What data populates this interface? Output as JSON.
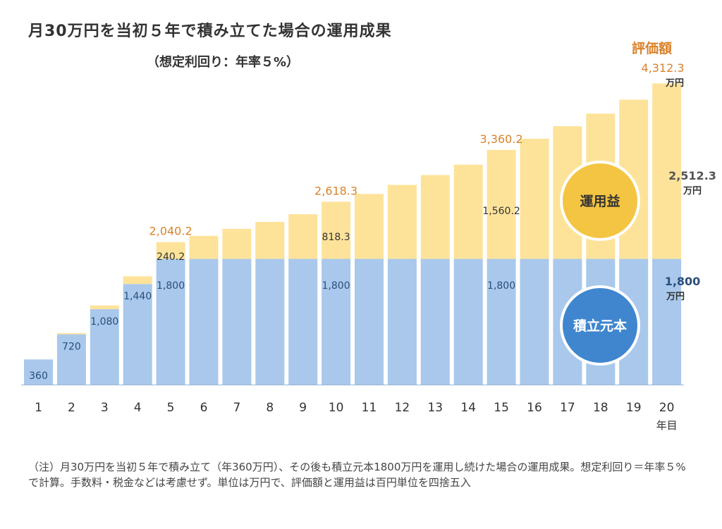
{
  "title": "月30万円を当初５年で積み立てた場合の運用成果",
  "subtitle": "（想定利回り：年率５%）",
  "note": "（注）月30万円を当初５年で積み立て（年360万円）、その後も積立元本1800万円を運用し続けた場合の運用成果。想定利回り＝年率５%で計算。手数料・税金などは考慮せず。単位は万円で、評価額と運用益は百円単位を四捨五入",
  "colors": {
    "principal": "#a9c8ec",
    "gain": "#fde39a",
    "eval_text": "#d9822b",
    "principal_circle": "#3f86cf",
    "gain_circle": "#f4c542",
    "value_text": "#2a4f7a"
  },
  "chart_data": {
    "type": "bar",
    "stacked": true,
    "categories": [
      "1",
      "2",
      "3",
      "4",
      "5",
      "6",
      "7",
      "8",
      "9",
      "10",
      "11",
      "12",
      "13",
      "14",
      "15",
      "16",
      "17",
      "18",
      "19",
      "20"
    ],
    "x_unit": "年目",
    "ylim": [
      0,
      4700
    ],
    "series": [
      {
        "name": "積立元本",
        "values": [
          360,
          720,
          1080,
          1440,
          1800,
          1800,
          1800,
          1800,
          1800,
          1800,
          1800,
          1800,
          1800,
          1800,
          1800,
          1800,
          1800,
          1800,
          1800,
          1800
        ]
      },
      {
        "name": "運用益",
        "values": [
          0,
          18,
          54,
          110,
          240.2,
          330,
          430,
          530,
          640,
          818.3,
          930,
          1060,
          1200,
          1350,
          1560.2,
          1720,
          1900,
          2080,
          2280,
          2512.3
        ]
      }
    ],
    "principal_labels": [
      {
        "index": 0,
        "text": "360"
      },
      {
        "index": 1,
        "text": "720"
      },
      {
        "index": 2,
        "text": "1,080"
      },
      {
        "index": 3,
        "text": "1,440"
      },
      {
        "index": 4,
        "text": "1,800"
      },
      {
        "index": 9,
        "text": "1,800"
      },
      {
        "index": 14,
        "text": "1,800"
      }
    ],
    "gain_labels": [
      {
        "index": 4,
        "text": "240.2"
      },
      {
        "index": 9,
        "text": "818.3"
      },
      {
        "index": 14,
        "text": "1,560.2"
      }
    ],
    "total_labels": [
      {
        "index": 4,
        "text": "2,040.2"
      },
      {
        "index": 9,
        "text": "2,618.3"
      },
      {
        "index": 14,
        "text": "3,360.2"
      }
    ],
    "final": {
      "eval_label": "評価額",
      "total": "4,312.3",
      "total_unit": "万円",
      "gain": "2,512.3",
      "gain_unit": "万円",
      "principal": "1,800",
      "principal_unit": "万円"
    },
    "legend": {
      "gain": "運用益",
      "principal": "積立元本"
    }
  }
}
